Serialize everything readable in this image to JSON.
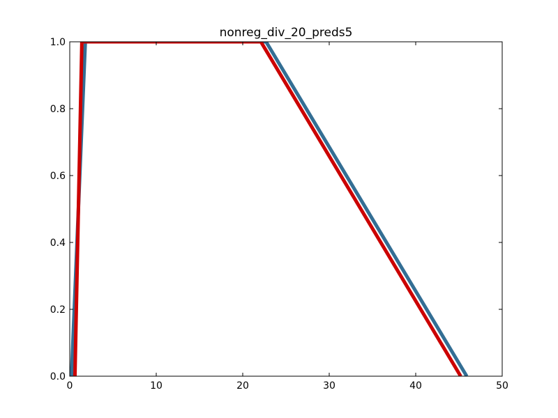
{
  "chart_data": {
    "type": "line",
    "title": "nonreg_div_20_preds5",
    "xlabel": "",
    "ylabel": "",
    "xlim": [
      0,
      50
    ],
    "ylim": [
      0,
      1.0
    ],
    "xticks": [
      0,
      10,
      20,
      30,
      40,
      50
    ],
    "xtick_labels": [
      "0",
      "10",
      "20",
      "30",
      "40",
      "50"
    ],
    "yticks": [
      0.0,
      0.2,
      0.4,
      0.6,
      0.8,
      1.0
    ],
    "ytick_labels": [
      "0.0",
      "0.2",
      "0.4",
      "0.6",
      "0.8",
      "1.0"
    ],
    "grid": false,
    "legend": "none",
    "series": [
      {
        "color": "#336e94",
        "x": [
          0.2,
          1.8,
          22.7,
          45.9
        ],
        "y": [
          0.0,
          1.0,
          1.0,
          0.0
        ]
      },
      {
        "color": "#cc0000",
        "x": [
          0.6,
          1.4,
          22.1,
          45.2
        ],
        "y": [
          0.0,
          1.0,
          1.0,
          0.0
        ]
      }
    ]
  }
}
